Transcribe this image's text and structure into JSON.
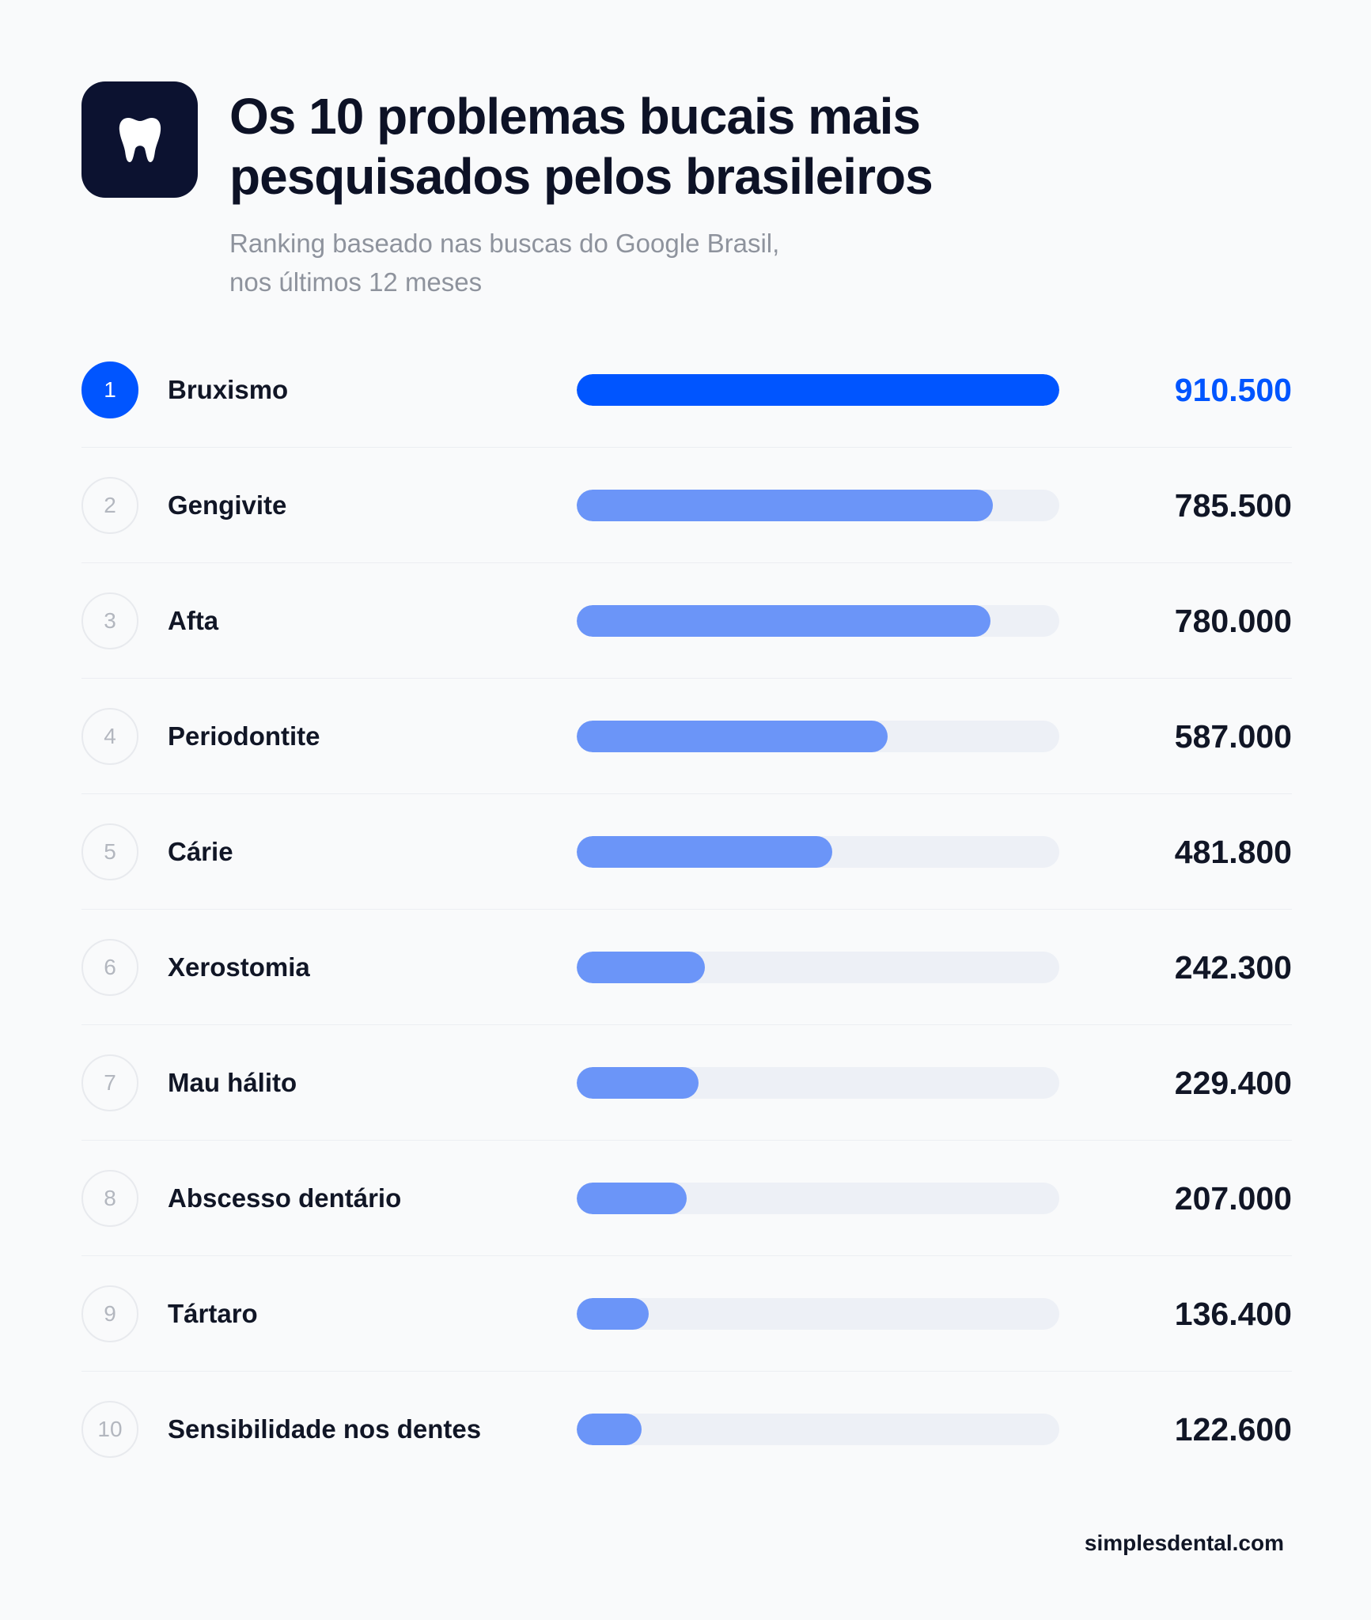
{
  "header": {
    "logo_icon": "tooth-icon",
    "title": "Os 10 problemas bucais mais pesquisados pelos brasileiros",
    "subtitle_line1": "Ranking baseado nas buscas do Google Brasil,",
    "subtitle_line2": "nos últimos 12 meses"
  },
  "colors": {
    "accent": "#0055ff",
    "bar": "#6b95f8",
    "track": "#edf0f6",
    "logo_bg": "#0c1230"
  },
  "chart_data": {
    "type": "bar",
    "orientation": "horizontal",
    "title": "Os 10 problemas bucais mais pesquisados pelos brasileiros",
    "subtitle": "Ranking baseado nas buscas do Google Brasil, nos últimos 12 meses",
    "xlim": [
      0,
      910500
    ],
    "categories": [
      "Bruxismo",
      "Gengivite",
      "Afta",
      "Periodontite",
      "Cárie",
      "Xerostomia",
      "Mau hálito",
      "Abscesso dentário",
      "Tártaro",
      "Sensibilidade nos dentes"
    ],
    "ranks": [
      "1",
      "2",
      "3",
      "4",
      "5",
      "6",
      "7",
      "8",
      "9",
      "10"
    ],
    "values": [
      910500,
      785500,
      780000,
      587000,
      481800,
      242300,
      229400,
      207000,
      136400,
      122600
    ],
    "value_labels": [
      "910.500",
      "785.500",
      "780.000",
      "587.000",
      "481.800",
      "242.300",
      "229.400",
      "207.000",
      "136.400",
      "122.600"
    ]
  },
  "footer": {
    "source": "simplesdental.com"
  }
}
